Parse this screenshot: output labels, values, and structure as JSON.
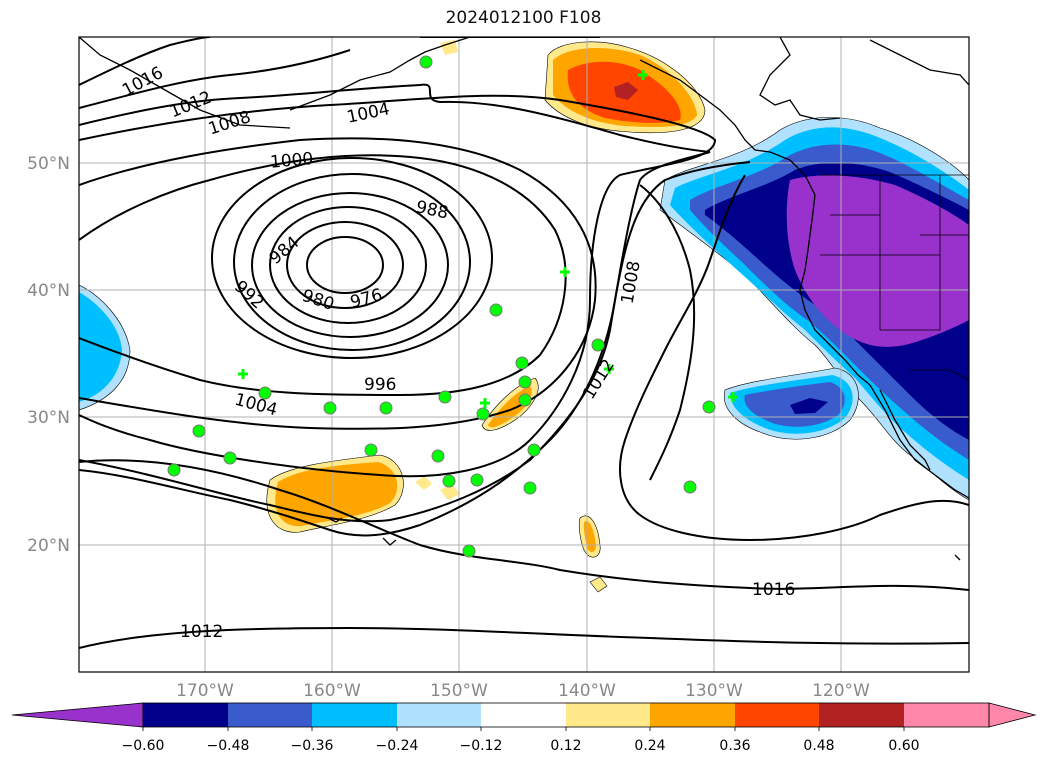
{
  "title": "2024012100 F108",
  "map": {
    "lat_labels": [
      "50°N",
      "40°N",
      "30°N",
      "20°N"
    ],
    "lon_labels": [
      "170°W",
      "160°W",
      "150°W",
      "140°W",
      "130°W",
      "120°W"
    ],
    "isobar_labels": [
      "1016",
      "1012",
      "1008",
      "1004",
      "1000",
      "988",
      "984",
      "980",
      "976",
      "992",
      "996",
      "1004",
      "1008",
      "1012",
      "1016",
      "1012"
    ],
    "grid_color": "#b0b0b0"
  },
  "colorbar": {
    "ticks": [
      "−0.60",
      "−0.48",
      "−0.36",
      "−0.24",
      "−0.12",
      "0.12",
      "0.24",
      "0.36",
      "0.48",
      "0.60"
    ],
    "colors": [
      "#9932cc",
      "#00008b",
      "#3a5bcc",
      "#00bfff",
      "#b0e2ff",
      "#ffffff",
      "#ffe98a",
      "#ffa500",
      "#ff4500",
      "#b22222",
      "#ff88aa"
    ]
  },
  "colors": {
    "station_fill": "#00ff00",
    "station_edge": "#777777"
  }
}
